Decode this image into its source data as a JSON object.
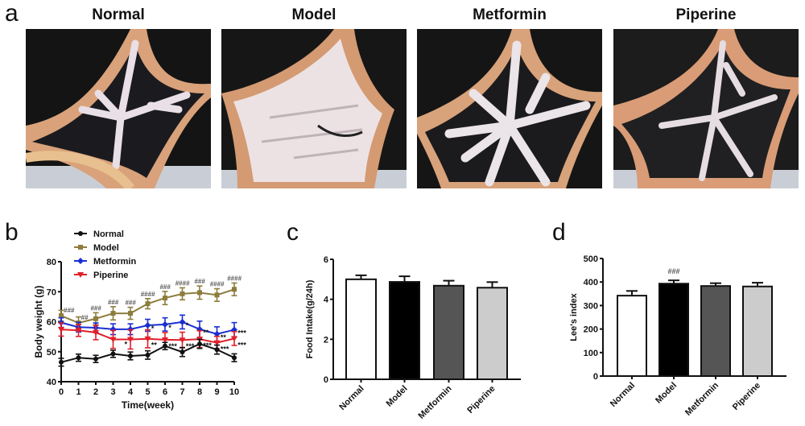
{
  "figure": {
    "panel_labels": [
      "a",
      "b",
      "c",
      "d"
    ],
    "photos": [
      {
        "title": "Normal",
        "style": "normal"
      },
      {
        "title": "Model",
        "style": "model"
      },
      {
        "title": "Metformin",
        "style": "metformin"
      },
      {
        "title": "Piperine",
        "style": "piperine"
      }
    ]
  },
  "chart_data": [
    {
      "panel": "b",
      "type": "line",
      "title": "",
      "xlabel": "Time(week)",
      "ylabel": "Body weight (g)",
      "xlim": [
        0,
        10
      ],
      "ylim": [
        40,
        80
      ],
      "x": [
        0,
        1,
        2,
        3,
        4,
        5,
        6,
        7,
        8,
        9,
        10
      ],
      "x_ticks": [
        "0",
        "1",
        "2",
        "3",
        "4",
        "5",
        "6",
        "7",
        "8",
        "9",
        "10"
      ],
      "y_ticks": [
        "40",
        "50",
        "60",
        "70",
        "80"
      ],
      "legend_position": "top-left",
      "series": [
        {
          "name": "Normal",
          "color": "#111111",
          "marker": "circle",
          "values": [
            46.5,
            48.0,
            47.6,
            49.3,
            48.6,
            48.9,
            51.9,
            49.9,
            52.6,
            50.7,
            48.0
          ],
          "errors": [
            1.3,
            1.2,
            1.2,
            1.2,
            1.3,
            1.4,
            1.2,
            1.5,
            1.5,
            1.5,
            1.3
          ]
        },
        {
          "name": "Model",
          "color": "#8c7d3c",
          "marker": "square",
          "values": [
            62.0,
            59.6,
            61.0,
            62.8,
            62.8,
            66.0,
            67.9,
            69.3,
            69.7,
            68.9,
            70.8
          ],
          "errors": [
            1.8,
            2.0,
            2.0,
            2.2,
            2.0,
            1.7,
            2.2,
            2.0,
            2.2,
            2.1,
            2.1
          ]
        },
        {
          "name": "Metformin",
          "color": "#1a2fd0",
          "marker": "diamond",
          "values": [
            59.7,
            58.2,
            58.0,
            57.5,
            57.5,
            58.8,
            59.1,
            59.9,
            57.5,
            55.9,
            57.3
          ],
          "errors": [
            1.6,
            1.6,
            1.6,
            1.8,
            1.8,
            2.0,
            2.2,
            2.3,
            2.7,
            2.4,
            2.4
          ]
        },
        {
          "name": "Piperine",
          "color": "#e0202a",
          "marker": "triangle-down",
          "values": [
            57.4,
            57.1,
            56.4,
            54.1,
            54.1,
            54.3,
            54.0,
            53.9,
            54.2,
            53.0,
            54.4
          ],
          "errors": [
            2.2,
            2.0,
            2.4,
            3.0,
            3.2,
            3.0,
            2.4,
            2.6,
            2.8,
            2.1,
            2.3
          ]
        }
      ],
      "annotations": [
        {
          "x": 0,
          "series": "Model",
          "text": "###"
        },
        {
          "x": 1,
          "series": "Model",
          "text": "##"
        },
        {
          "x": 2,
          "series": "Model",
          "text": "###"
        },
        {
          "x": 3,
          "series": "Model",
          "text": "###"
        },
        {
          "x": 4,
          "series": "Model",
          "text": "###"
        },
        {
          "x": 5,
          "series": "Model",
          "text": "####"
        },
        {
          "x": 6,
          "series": "Model",
          "text": "###"
        },
        {
          "x": 7,
          "series": "Model",
          "text": "####"
        },
        {
          "x": 8,
          "series": "Model",
          "text": "###"
        },
        {
          "x": 9,
          "series": "Model",
          "text": "####"
        },
        {
          "x": 10,
          "series": "Model",
          "text": "####"
        },
        {
          "x": 5,
          "series": "Metformin",
          "text": "*"
        },
        {
          "x": 6,
          "series": "Metformin",
          "text": "*"
        },
        {
          "x": 7,
          "series": "Metformin",
          "text": "*"
        },
        {
          "x": 8,
          "series": "Metformin",
          "text": "**"
        },
        {
          "x": 9,
          "series": "Metformin",
          "text": "**"
        },
        {
          "x": 10,
          "series": "Metformin",
          "text": "***"
        },
        {
          "x": 4,
          "series": "Piperine",
          "text": "*"
        },
        {
          "x": 5,
          "series": "Piperine",
          "text": "**"
        },
        {
          "x": 6,
          "series": "Piperine",
          "text": "***"
        },
        {
          "x": 7,
          "series": "Piperine",
          "text": "***"
        },
        {
          "x": 8,
          "series": "Piperine",
          "text": "***"
        },
        {
          "x": 9,
          "series": "Piperine",
          "text": "***"
        },
        {
          "x": 10,
          "series": "Piperine",
          "text": "***"
        }
      ]
    },
    {
      "panel": "c",
      "type": "bar",
      "title": "",
      "xlabel": "",
      "ylabel": "Food Intake(g/24h)",
      "ylim": [
        0,
        6
      ],
      "y_ticks": [
        "0",
        "2",
        "4",
        "6"
      ],
      "categories": [
        "Normal",
        "Model",
        "Metformin",
        "Piperine"
      ],
      "values": [
        5.0,
        4.87,
        4.68,
        4.58
      ],
      "errors": [
        0.2,
        0.28,
        0.25,
        0.28
      ],
      "colors": [
        "#ffffff",
        "#000000",
        "#555555",
        "#cccccc"
      ],
      "annotations": []
    },
    {
      "panel": "d",
      "type": "bar",
      "title": "",
      "xlabel": "",
      "ylabel": "Lee's index",
      "ylim": [
        0,
        500
      ],
      "y_ticks": [
        "0",
        "100",
        "200",
        "300",
        "400",
        "500"
      ],
      "categories": [
        "Normal",
        "Model",
        "Metformin",
        "Piperine"
      ],
      "values": [
        342,
        393,
        383,
        381
      ],
      "errors": [
        20,
        14,
        12,
        16
      ],
      "colors": [
        "#ffffff",
        "#000000",
        "#555555",
        "#cccccc"
      ],
      "annotations": [
        {
          "category": "Model",
          "text": "###"
        }
      ]
    }
  ]
}
